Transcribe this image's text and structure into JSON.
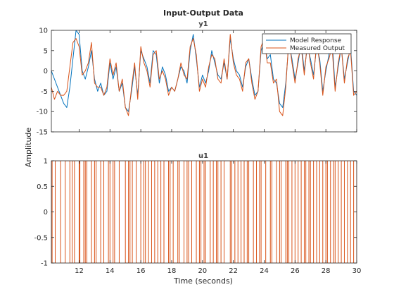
{
  "figure": {
    "title": "Input-Output Data",
    "xlabel": "Time (seconds)",
    "ylabel": "Amplitude"
  },
  "chart_data": [
    {
      "type": "line",
      "title": "y1",
      "xlim": [
        10.2,
        30
      ],
      "ylim": [
        -15,
        10
      ],
      "xticks": [
        12,
        14,
        16,
        18,
        20,
        22,
        24,
        26,
        28,
        30
      ],
      "yticks": [
        10,
        5,
        0,
        -5,
        -10,
        -15
      ],
      "grid": false,
      "legend": "top-right",
      "series": [
        {
          "name": "Model Response",
          "color": "#0072BD",
          "x": [
            10.2,
            10.4,
            10.6,
            10.8,
            11.0,
            11.2,
            11.4,
            11.6,
            11.8,
            12.0,
            12.2,
            12.4,
            12.6,
            12.8,
            13.0,
            13.2,
            13.4,
            13.6,
            13.8,
            14.0,
            14.2,
            14.4,
            14.6,
            14.8,
            15.0,
            15.2,
            15.4,
            15.6,
            15.8,
            16.0,
            16.2,
            16.4,
            16.6,
            16.8,
            17.0,
            17.2,
            17.4,
            17.6,
            17.8,
            18.0,
            18.2,
            18.4,
            18.6,
            18.8,
            19.0,
            19.2,
            19.4,
            19.6,
            19.8,
            20.0,
            20.2,
            20.4,
            20.6,
            20.8,
            21.0,
            21.2,
            21.4,
            21.6,
            21.8,
            22.0,
            22.2,
            22.4,
            22.6,
            22.8,
            23.0,
            23.2,
            23.4,
            23.6,
            23.8,
            24.0,
            24.2,
            24.4,
            24.6,
            24.8,
            25.0,
            25.2,
            25.4,
            25.6,
            25.8,
            26.0,
            26.2,
            26.4,
            26.6,
            26.8,
            27.0,
            27.2,
            27.4,
            27.6,
            27.8,
            28.0,
            28.2,
            28.4,
            28.6,
            28.8,
            29.0,
            29.2,
            29.4,
            29.6,
            29.8,
            30.0
          ],
          "y": [
            0,
            -2,
            -4,
            -6,
            -8,
            -9,
            -4,
            3,
            10,
            9,
            0,
            -2,
            1,
            5,
            -2,
            -5,
            -3,
            -6,
            -5,
            2,
            -2,
            1,
            -5,
            -3,
            -9,
            -10,
            -5,
            1,
            -6,
            5,
            3,
            1,
            -3,
            5,
            4,
            -3,
            1,
            -1,
            -5,
            -4,
            -5,
            -2,
            1,
            0,
            -3,
            5,
            9,
            3,
            -4,
            -1,
            -3,
            0,
            5,
            2,
            -1,
            -2,
            2,
            -2,
            8,
            3,
            0,
            -1,
            -4,
            1,
            3,
            -2,
            -6,
            -5,
            5,
            7,
            3,
            4,
            -2,
            -3,
            -8,
            -9,
            -3,
            7,
            3,
            -2,
            2,
            7,
            0,
            6,
            3,
            -1,
            6,
            3,
            -5,
            0,
            4,
            8,
            -4,
            1,
            6,
            -2,
            2,
            6,
            -5,
            -6
          ]
        },
        {
          "name": "Measured Output",
          "color": "#D95319",
          "x": [
            10.2,
            10.4,
            10.6,
            10.8,
            11.0,
            11.2,
            11.4,
            11.6,
            11.8,
            12.0,
            12.2,
            12.4,
            12.6,
            12.8,
            13.0,
            13.2,
            13.4,
            13.6,
            13.8,
            14.0,
            14.2,
            14.4,
            14.6,
            14.8,
            15.0,
            15.2,
            15.4,
            15.6,
            15.8,
            16.0,
            16.2,
            16.4,
            16.6,
            16.8,
            17.0,
            17.2,
            17.4,
            17.6,
            17.8,
            18.0,
            18.2,
            18.4,
            18.6,
            18.8,
            19.0,
            19.2,
            19.4,
            19.6,
            19.8,
            20.0,
            20.2,
            20.4,
            20.6,
            20.8,
            21.0,
            21.2,
            21.4,
            21.6,
            21.8,
            22.0,
            22.2,
            22.4,
            22.6,
            22.8,
            23.0,
            23.2,
            23.4,
            23.6,
            23.8,
            24.0,
            24.2,
            24.4,
            24.6,
            24.8,
            25.0,
            25.2,
            25.4,
            25.6,
            25.8,
            26.0,
            26.2,
            26.4,
            26.6,
            26.8,
            27.0,
            27.2,
            27.4,
            27.6,
            27.8,
            28.0,
            28.2,
            28.4,
            28.6,
            28.8,
            29.0,
            29.2,
            29.4,
            29.6,
            29.8,
            30.0
          ],
          "y": [
            -4,
            -7,
            -5,
            -6,
            -6,
            -5,
            1,
            7,
            8,
            6,
            -1,
            0,
            2,
            7,
            -3,
            -4,
            -4,
            -6,
            -4,
            3,
            -1,
            2,
            -5,
            -2,
            -9,
            -11,
            -4,
            2,
            -7,
            6,
            2,
            0,
            -4,
            4,
            5,
            -2,
            0,
            -2,
            -6,
            -4,
            -5,
            -2,
            2,
            -1,
            -2,
            6,
            8,
            4,
            -5,
            -2,
            -4,
            1,
            4,
            3,
            -2,
            -3,
            3,
            -2,
            9,
            2,
            -1,
            -2,
            -5,
            2,
            3,
            -3,
            -7,
            -5,
            6,
            8,
            2,
            2,
            -3,
            -2,
            -10,
            -11,
            -4,
            8,
            2,
            -3,
            3,
            6,
            -1,
            7,
            2,
            -2,
            7,
            2,
            -6,
            1,
            3,
            6,
            -5,
            2,
            6,
            -3,
            3,
            5,
            -6,
            -5
          ]
        }
      ]
    },
    {
      "type": "line",
      "title": "u1",
      "xlim": [
        10.2,
        30
      ],
      "ylim": [
        -1,
        1
      ],
      "xticks": [
        12,
        14,
        16,
        18,
        20,
        22,
        24,
        26,
        28,
        30
      ],
      "yticks": [
        1,
        0.5,
        0,
        -0.5,
        -1
      ],
      "grid": false,
      "switch_times": [
        10.25,
        10.45,
        10.8,
        11.1,
        11.4,
        11.55,
        11.7,
        12.0,
        12.05,
        12.3,
        12.4,
        12.5,
        12.8,
        13.0,
        13.1,
        13.4,
        13.6,
        13.9,
        14.0,
        14.2,
        14.3,
        14.6,
        15.0,
        15.2,
        15.3,
        15.45,
        15.7,
        16.0,
        16.2,
        16.3,
        16.5,
        16.7,
        16.9,
        17.1,
        17.3,
        17.5,
        17.8,
        17.9,
        18.1,
        18.4,
        18.5,
        18.8,
        19.0,
        19.1,
        19.3,
        19.6,
        19.8,
        19.9,
        20.1,
        20.2,
        20.5,
        20.7,
        20.9,
        21.0,
        21.2,
        21.4,
        21.8,
        21.9,
        22.1,
        22.3,
        22.5,
        22.7,
        22.9,
        23.0,
        23.3,
        23.5,
        23.7,
        23.8,
        24.1,
        24.4,
        24.5,
        24.8,
        25.0,
        25.1,
        25.4,
        25.5,
        25.6,
        25.8,
        26.0,
        26.2,
        26.4,
        26.6,
        26.7,
        26.9,
        27.0,
        27.2,
        27.4,
        27.6,
        27.8,
        28.0,
        28.1,
        28.3,
        28.5,
        28.6,
        28.8,
        29.0,
        29.2,
        29.4,
        29.6,
        29.8,
        30.0
      ],
      "series": [
        {
          "name": "",
          "color": "#D95319",
          "levels": [
            -1,
            1
          ]
        }
      ]
    }
  ]
}
